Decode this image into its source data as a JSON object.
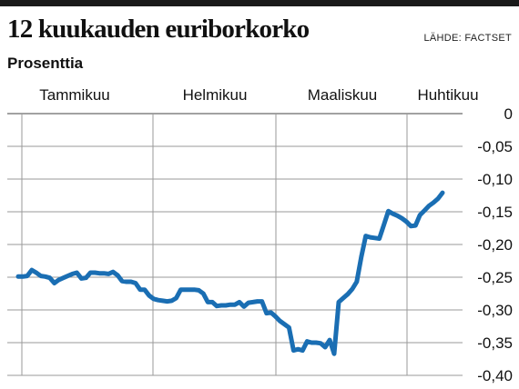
{
  "header": {
    "title": "12 kuukauden euriborkorko",
    "source": "LÄHDE: FACTSET",
    "unit": "Prosenttia"
  },
  "chart_data": {
    "type": "line",
    "title": "12 kuukauden euriborkorko",
    "ylabel": "Prosenttia",
    "month_labels": [
      "Tammikuu",
      "Helmikuu",
      "Maaliskuu",
      "Huhtikuu"
    ],
    "yticks": [
      "0",
      "-0,05",
      "-0,10",
      "-0,15",
      "-0,20",
      "-0,25",
      "-0,30",
      "-0,35",
      "-0,40"
    ],
    "ylim": [
      -0.4,
      0
    ],
    "grid": true,
    "line_color": "#1a6eb3",
    "series": [
      {
        "values": [
          -0.249,
          -0.249,
          -0.248,
          -0.239,
          -0.243,
          -0.248,
          -0.249,
          -0.251,
          -0.259,
          -0.254,
          -0.251,
          -0.248,
          -0.245,
          -0.243,
          -0.252,
          -0.251,
          -0.243,
          -0.243,
          -0.244,
          -0.244,
          -0.245,
          -0.242,
          -0.247,
          -0.256,
          -0.257,
          -0.257,
          -0.259,
          -0.269,
          -0.269,
          -0.278,
          -0.283,
          -0.285,
          -0.286,
          -0.287,
          -0.286,
          -0.282,
          -0.269,
          -0.269,
          -0.269,
          -0.269,
          -0.27,
          -0.275,
          -0.288,
          -0.288,
          -0.294,
          -0.293,
          -0.293,
          -0.292,
          -0.292,
          -0.288,
          -0.295,
          -0.289,
          -0.288,
          -0.287,
          -0.287,
          -0.305,
          -0.304,
          -0.31,
          -0.317,
          -0.322,
          -0.327,
          -0.362,
          -0.36,
          -0.362,
          -0.348,
          -0.35,
          -0.35,
          -0.351,
          -0.357,
          -0.346,
          -0.367,
          -0.288,
          -0.282,
          -0.276,
          -0.268,
          -0.257,
          -0.219,
          -0.187,
          -0.189,
          -0.19,
          -0.191,
          -0.17,
          -0.149,
          -0.153,
          -0.156,
          -0.16,
          -0.165,
          -0.172,
          -0.171,
          -0.155,
          -0.148,
          -0.141,
          -0.136,
          -0.13,
          -0.121
        ]
      }
    ]
  }
}
